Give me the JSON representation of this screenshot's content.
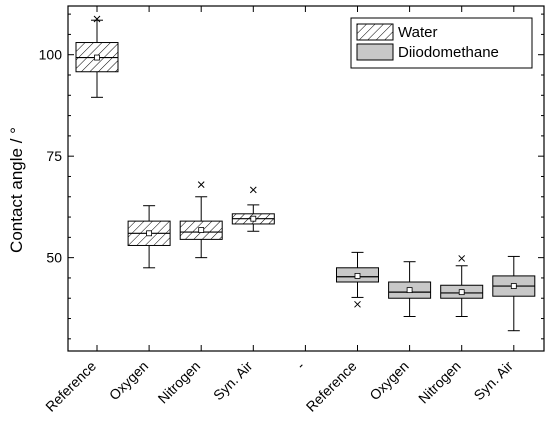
{
  "chart_data": {
    "type": "boxplot",
    "title": "",
    "xlabel": "",
    "ylabel": "Contact angle  / °",
    "ylim": [
      27,
      112
    ],
    "yticks": [
      50,
      75,
      100
    ],
    "legend_position": "top-right",
    "categories": [
      "Reference",
      "Oxygen",
      "Nitrogen",
      "Syn. Air",
      "-",
      "Reference",
      "Oxygen",
      "Nitrogen",
      "Syn. Air"
    ],
    "series": [
      {
        "name": "Water",
        "fill": "hatched",
        "boxes": [
          {
            "category_index": 0,
            "min": 89.5,
            "q1": 95.8,
            "median": 99.3,
            "q3": 103.0,
            "max": 108.5,
            "mean": 99.3,
            "outliers": [
              108.8
            ]
          },
          {
            "category_index": 1,
            "min": 47.5,
            "q1": 53.0,
            "median": 56.0,
            "q3": 59.0,
            "max": 62.8,
            "mean": 56.0,
            "outliers": []
          },
          {
            "category_index": 2,
            "min": 50.0,
            "q1": 54.5,
            "median": 56.3,
            "q3": 59.0,
            "max": 65.0,
            "mean": 56.8,
            "outliers": [
              68.0
            ]
          },
          {
            "category_index": 3,
            "min": 56.5,
            "q1": 58.3,
            "median": 59.6,
            "q3": 60.8,
            "max": 63.0,
            "mean": 59.6,
            "outliers": [
              66.7
            ]
          }
        ]
      },
      {
        "name": "Diiodomethane",
        "fill": "#c8c8c8",
        "boxes": [
          {
            "category_index": 5,
            "min": 40.2,
            "q1": 44.0,
            "median": 45.3,
            "q3": 47.5,
            "max": 51.3,
            "mean": 45.5,
            "outliers": [
              38.5
            ]
          },
          {
            "category_index": 6,
            "min": 35.5,
            "q1": 40.0,
            "median": 41.5,
            "q3": 44.0,
            "max": 49.0,
            "mean": 42.0,
            "outliers": []
          },
          {
            "category_index": 7,
            "min": 35.5,
            "q1": 40.0,
            "median": 41.3,
            "q3": 43.2,
            "max": 48.0,
            "mean": 41.5,
            "outliers": [
              49.8
            ]
          },
          {
            "category_index": 8,
            "min": 32.0,
            "q1": 40.5,
            "median": 43.0,
            "q3": 45.5,
            "max": 50.3,
            "mean": 43.0,
            "outliers": []
          }
        ]
      }
    ]
  }
}
